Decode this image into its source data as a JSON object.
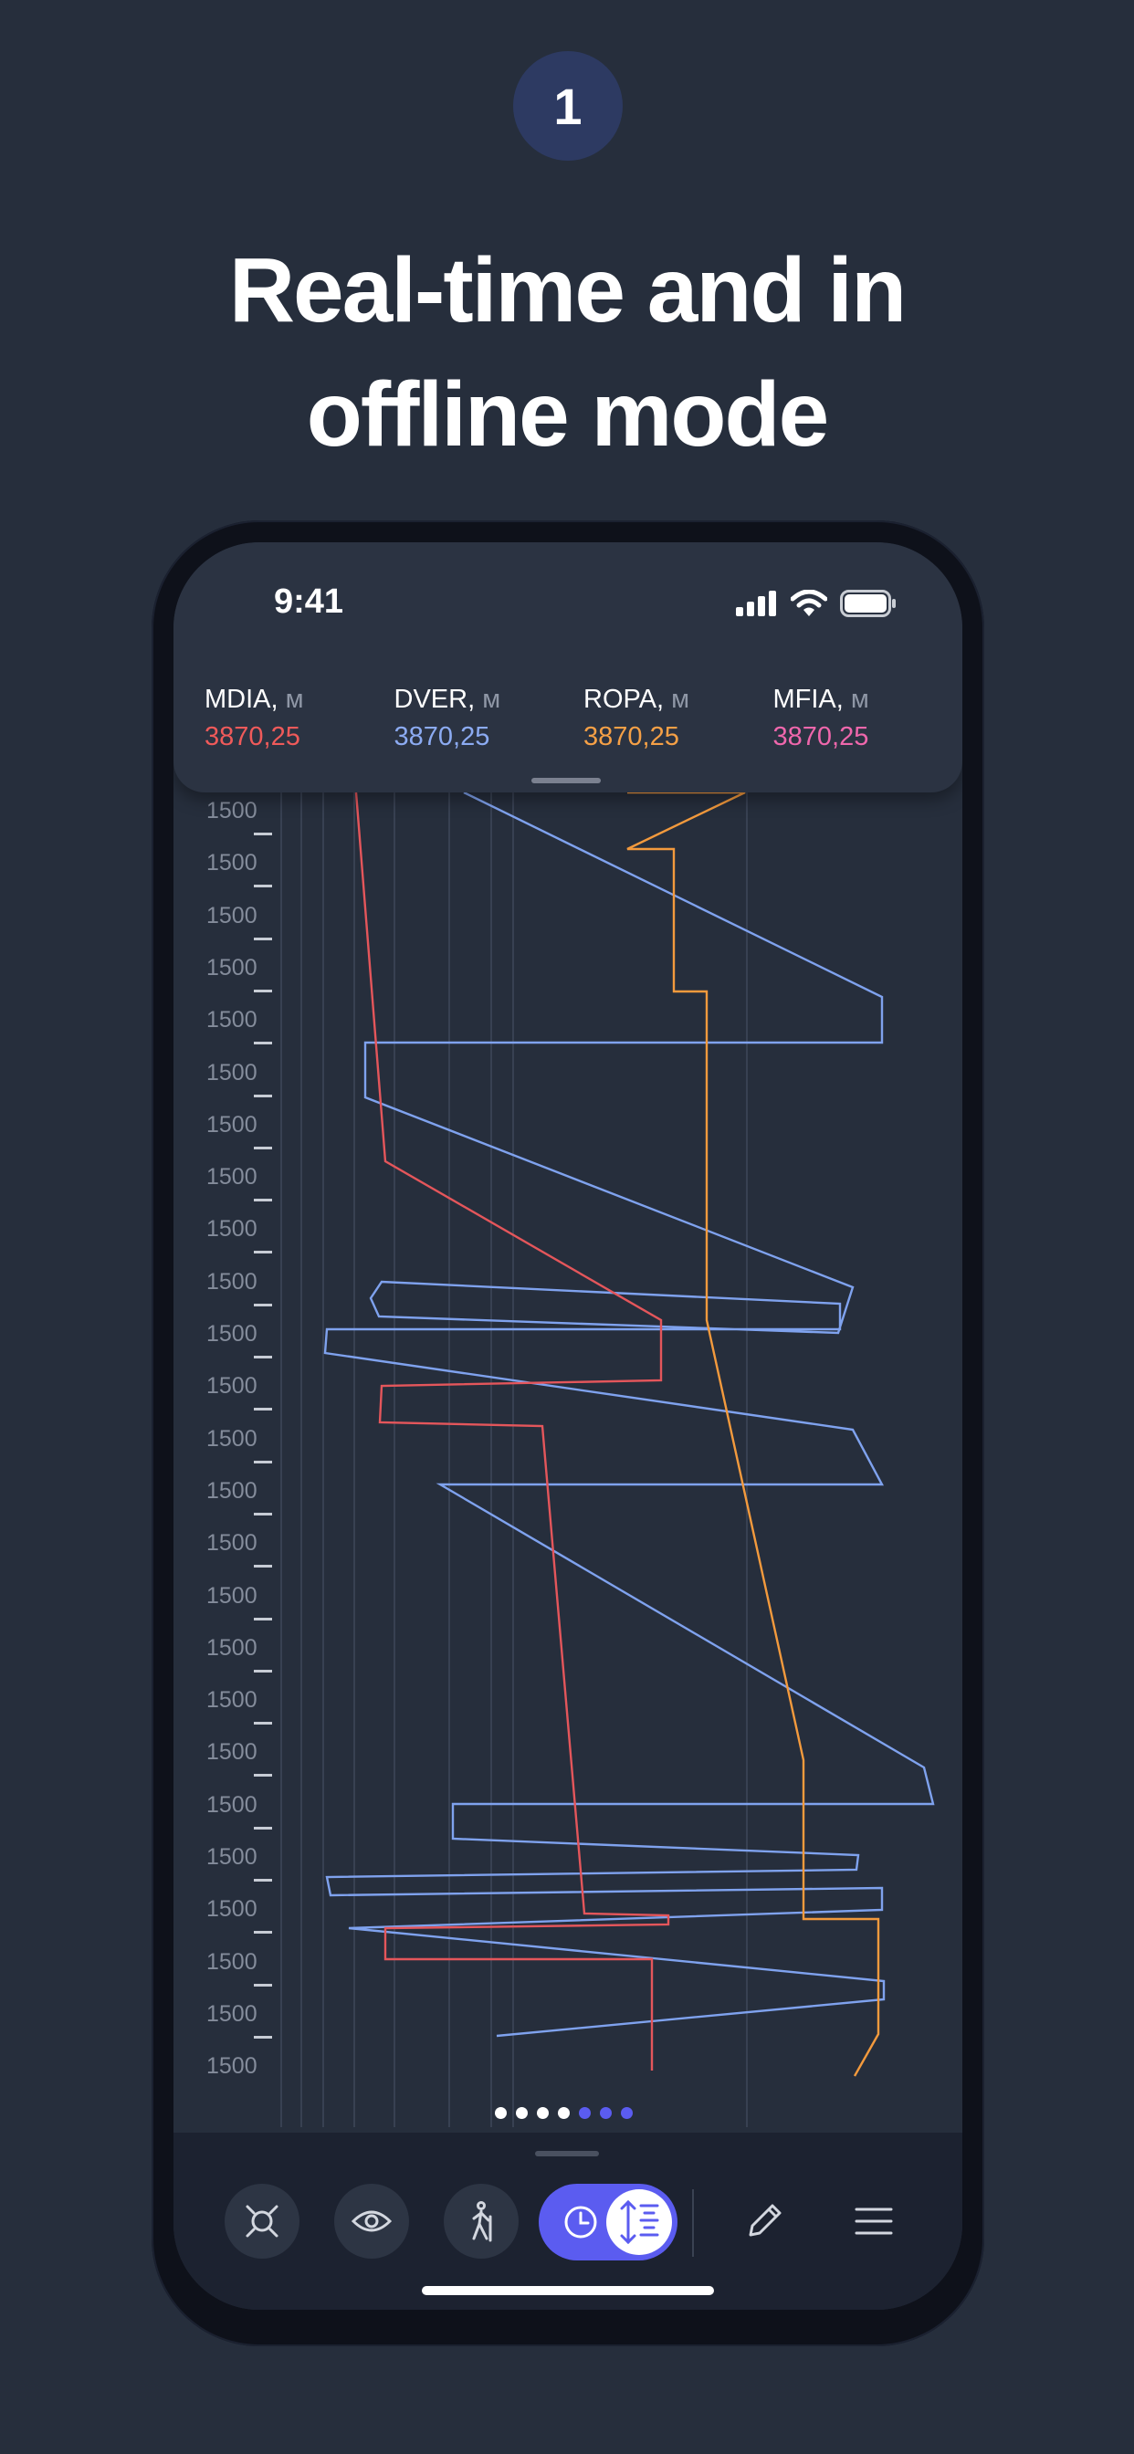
{
  "step_number": "1",
  "headline": {
    "line1": "Real-time and in",
    "line2": "offline mode"
  },
  "status_bar": {
    "time": "9:41"
  },
  "metrics": [
    {
      "label": "MDIA,",
      "unit": "м",
      "value": "3870,25",
      "color": "#ef5a5a"
    },
    {
      "label": "DVER,",
      "unit": "м",
      "value": "3870,25",
      "color": "#8cabf2"
    },
    {
      "label": "ROPA,",
      "unit": "м",
      "value": "3870,25",
      "color": "#f5a046"
    },
    {
      "label": "MFIA,",
      "unit": "м",
      "value": "3870,25",
      "color": "#ef67ac"
    }
  ],
  "depth_ticks": [
    "1500",
    "1500",
    "1500",
    "1500",
    "1500",
    "1500",
    "1500",
    "1500",
    "1500",
    "1500",
    "1500",
    "1500",
    "1500",
    "1500",
    "1500",
    "1500",
    "1500",
    "1500",
    "1500",
    "1500",
    "1500",
    "1500",
    "1500",
    "1500",
    "1500"
  ],
  "page_dots": {
    "total": 7,
    "active_from": 4
  },
  "toolbar": {
    "items": [
      {
        "name": "target-icon",
        "label": "target"
      },
      {
        "name": "eye-icon",
        "label": "view"
      },
      {
        "name": "walker-icon",
        "label": "walk"
      },
      {
        "name": "clock-icon",
        "label": "time mode"
      },
      {
        "name": "depth-scale-icon",
        "label": "depth mode"
      },
      {
        "name": "pencil-icon",
        "label": "edit"
      },
      {
        "name": "menu-icon",
        "label": "menu"
      }
    ],
    "accent": "#5b5cf0"
  }
}
